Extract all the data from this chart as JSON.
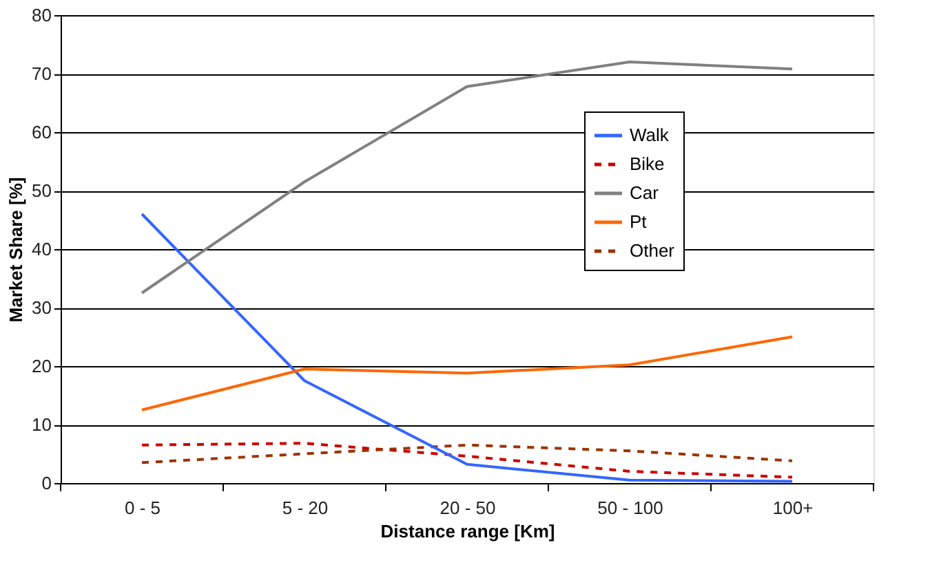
{
  "chart_data": {
    "type": "line",
    "xlabel": "Distance range [Km]",
    "ylabel": "Market Share [%]",
    "categories": [
      "0 - 5",
      "5 - 20",
      "20 - 50",
      "50 - 100",
      "100+"
    ],
    "series": [
      {
        "name": "Walk",
        "color": "#3366ff",
        "line_style": "solid",
        "values": [
          46,
          17.5,
          3.2,
          0.5,
          0.3
        ]
      },
      {
        "name": "Bike",
        "color": "#cc0000",
        "line_style": "dashed",
        "values": [
          6.5,
          6.8,
          4.6,
          2.0,
          1.0
        ]
      },
      {
        "name": "Car",
        "color": "#808080",
        "line_style": "solid",
        "values": [
          32.5,
          51.5,
          67.8,
          72,
          70.8
        ]
      },
      {
        "name": "Pt",
        "color": "#ff6600",
        "line_style": "solid",
        "values": [
          12.5,
          19.5,
          18.8,
          20.2,
          25
        ]
      },
      {
        "name": "Other",
        "color": "#993300",
        "line_style": "dashed",
        "values": [
          3.5,
          5,
          6.5,
          5.5,
          3.8
        ]
      }
    ],
    "ylim": [
      0,
      80
    ],
    "yticks": [
      0,
      10,
      20,
      30,
      40,
      50,
      60,
      70,
      80
    ],
    "grid": "y",
    "legend": "right",
    "marker": "none"
  }
}
